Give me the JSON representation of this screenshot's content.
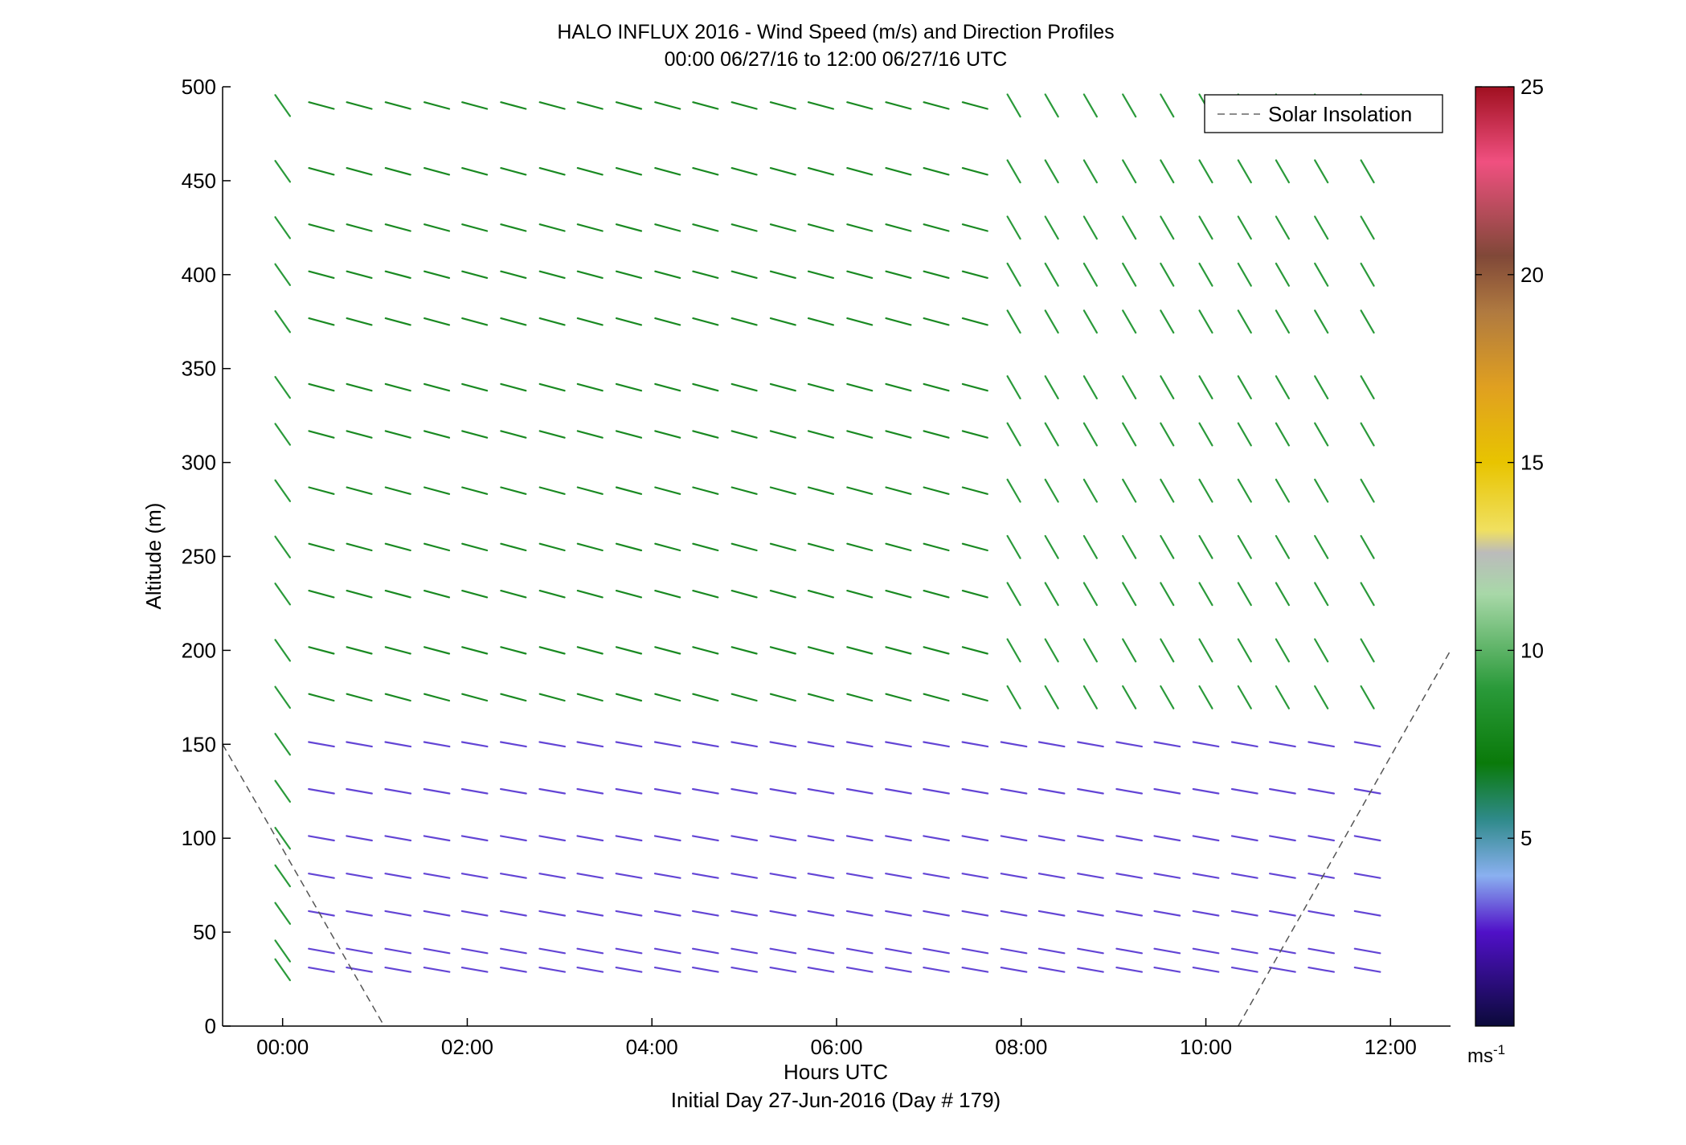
{
  "chart_data": {
    "type": "wind-barb-profile",
    "title": "HALO INFLUX 2016 - Wind Speed (m/s) and Direction Profiles",
    "subtitle": "00:00 06/27/16 to 12:00 06/27/16  UTC",
    "xlabel": "Hours UTC",
    "xlabel2": "Initial Day 27-Jun-2016 (Day # 179)",
    "ylabel": "Altitude (m)",
    "xlim_hours": [
      -0.65,
      12.65
    ],
    "ylim": [
      0,
      500
    ],
    "x_ticks": [
      {
        "value": 0,
        "label": "00:00"
      },
      {
        "value": 2,
        "label": "02:00"
      },
      {
        "value": 4,
        "label": "04:00"
      },
      {
        "value": 6,
        "label": "06:00"
      },
      {
        "value": 8,
        "label": "08:00"
      },
      {
        "value": 10,
        "label": "10:00"
      },
      {
        "value": 12,
        "label": "12:00"
      }
    ],
    "y_ticks": [
      0,
      50,
      100,
      150,
      200,
      250,
      300,
      350,
      400,
      450,
      500
    ],
    "legend": {
      "label": "Solar Insolation",
      "style": "dashed",
      "placement": "top-right"
    },
    "colorbar": {
      "range": [
        0,
        25
      ],
      "ticks": [
        5,
        10,
        15,
        20,
        25
      ],
      "unit": "ms-1",
      "stops": [
        {
          "v": 0,
          "color": "#0b0a3a"
        },
        {
          "v": 2.5,
          "color": "#5010c8"
        },
        {
          "v": 4,
          "color": "#8ab0f0"
        },
        {
          "v": 5.5,
          "color": "#2f8a8a"
        },
        {
          "v": 7,
          "color": "#0a7a0a"
        },
        {
          "v": 9,
          "color": "#2a9a3a"
        },
        {
          "v": 11.5,
          "color": "#a8d8a8"
        },
        {
          "v": 12.6,
          "color": "#bbbbbb"
        },
        {
          "v": 13.2,
          "color": "#f0e060"
        },
        {
          "v": 15,
          "color": "#e8c400"
        },
        {
          "v": 17,
          "color": "#e0a020"
        },
        {
          "v": 19,
          "color": "#b07a40"
        },
        {
          "v": 20.5,
          "color": "#804838"
        },
        {
          "v": 23,
          "color": "#f05080"
        },
        {
          "v": 25,
          "color": "#a01020"
        }
      ]
    },
    "solar_insolation_line": {
      "left": [
        {
          "hour": -0.65,
          "alt": 150
        },
        {
          "hour": 1.1,
          "alt": 0
        }
      ],
      "right": [
        {
          "hour": 10.35,
          "alt": 0
        },
        {
          "hour": 12.65,
          "alt": 200
        }
      ]
    },
    "altitudes": [
      30,
      40,
      60,
      80,
      100,
      125,
      150,
      175,
      200,
      230,
      255,
      285,
      315,
      340,
      375,
      400,
      425,
      455,
      490
    ],
    "profile_hours": [
      0,
      0.42,
      0.83,
      1.25,
      1.67,
      2.08,
      2.5,
      2.92,
      3.33,
      3.75,
      4.17,
      4.58,
      5.0,
      5.42,
      5.83,
      6.25,
      6.67,
      7.08,
      7.5,
      7.92,
      8.33,
      8.75,
      9.17,
      9.58,
      10.0,
      10.42,
      10.83,
      11.25,
      11.75
    ],
    "wind_regimes": [
      {
        "hours": [
          0,
          0.1
        ],
        "alt_range": [
          0,
          500
        ],
        "direction_deg": 325,
        "speed_ms": 9
      },
      {
        "hours": [
          0.4,
          12.0
        ],
        "alt_range": [
          0,
          160
        ],
        "direction_deg": 280,
        "speed_ms": 3
      },
      {
        "hours": [
          0.4,
          7.5
        ],
        "alt_range": [
          160,
          500
        ],
        "direction_deg": 285,
        "speed_ms": 8
      },
      {
        "hours": [
          7.5,
          12.0
        ],
        "alt_range": [
          160,
          500
        ],
        "direction_deg": 330,
        "speed_ms": 9
      }
    ]
  }
}
